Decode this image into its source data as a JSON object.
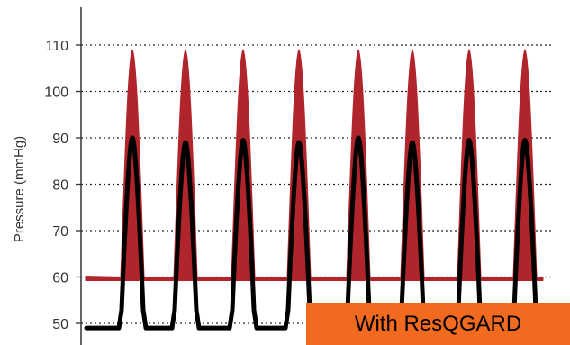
{
  "chart_data": {
    "type": "area",
    "ylabel": "Pressure (mmHg)",
    "yticks": [
      50,
      60,
      70,
      80,
      90,
      100,
      110
    ],
    "grid": "horizontal-dotted",
    "colors": {
      "upper": "#b0252b",
      "lower": "#000000",
      "badge": "#f26a1f"
    },
    "series": [
      {
        "role": "upper",
        "baseline": 60,
        "peaks": [
          109,
          109,
          109,
          109,
          109,
          109,
          109,
          109
        ]
      },
      {
        "role": "lower",
        "baseline": 49,
        "peaks": [
          90,
          89,
          89.5,
          89,
          90,
          89,
          89.5,
          89.5
        ]
      }
    ]
  },
  "badge": {
    "label": "With ResQGARD"
  }
}
